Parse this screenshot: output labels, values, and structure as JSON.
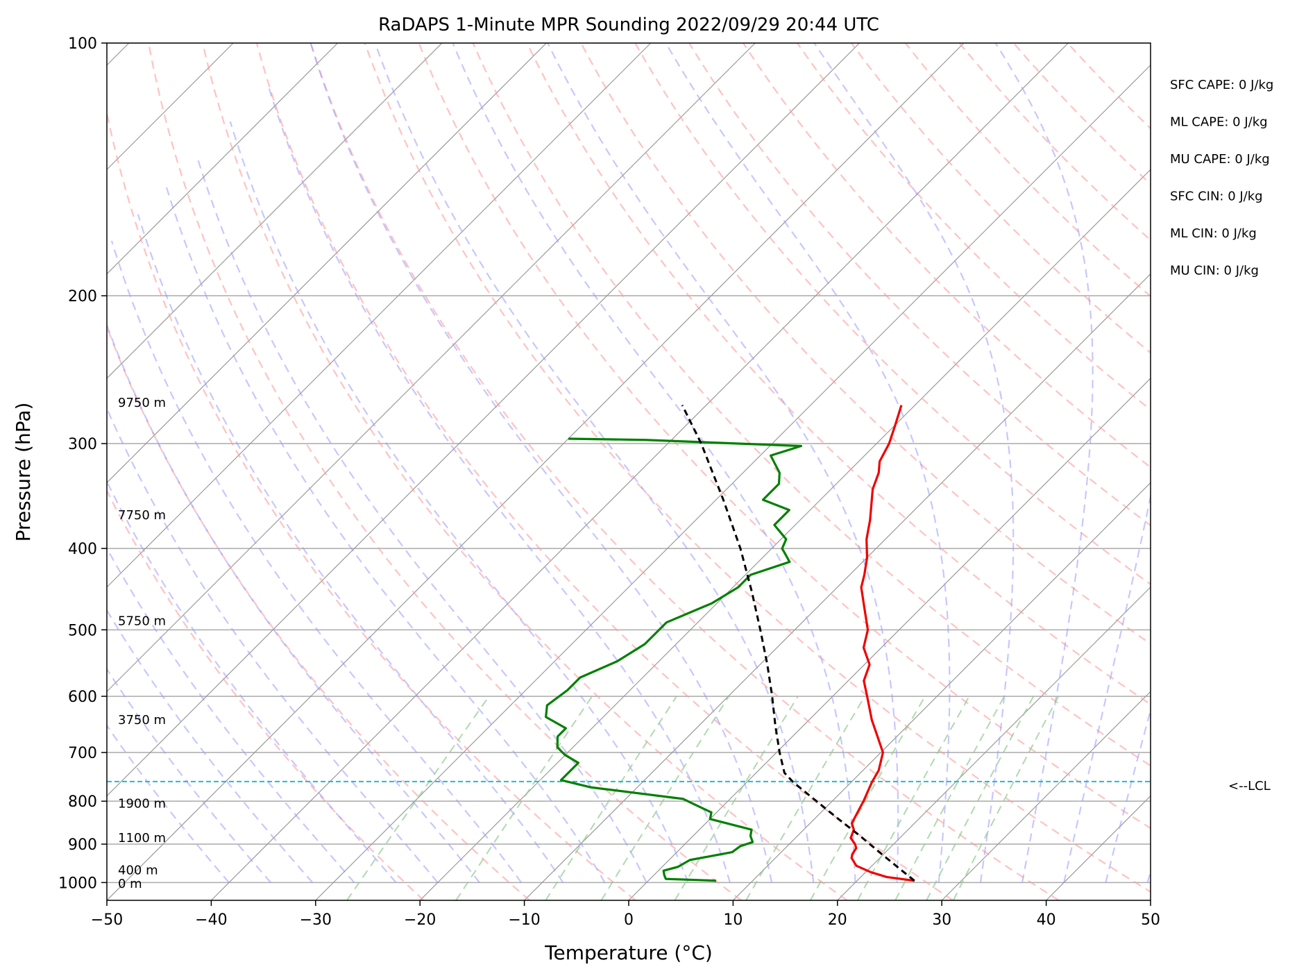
{
  "chart_data": {
    "type": "skew-t log-p sounding",
    "title": "RaDAPS 1-Minute MPR Sounding 2022/09/29 20:44 UTC",
    "xlabel": "Temperature (°C)",
    "ylabel": "Pressure (hPa)",
    "xlim": [
      -50,
      50
    ],
    "ylim_hpa": [
      1050,
      100
    ],
    "x_ticks": [
      "−50",
      "−40",
      "−30",
      "−20",
      "−10",
      "0",
      "10",
      "20",
      "30",
      "40",
      "50"
    ],
    "x_tick_values": [
      -50,
      -40,
      -30,
      -20,
      -10,
      0,
      10,
      20,
      30,
      40,
      50
    ],
    "y_ticks": [
      "100",
      "200",
      "300",
      "400",
      "500",
      "600",
      "700",
      "800",
      "900",
      "1000"
    ],
    "y_tick_values": [
      100,
      200,
      300,
      400,
      500,
      600,
      700,
      800,
      900,
      1000
    ],
    "grid": true,
    "colors": {
      "temperature": "#ee0000",
      "dewpoint": "#008000",
      "parcel": "#000000",
      "lcl": "#17becf",
      "dry_adiabats": "#ff9999",
      "moist_adiabats": "#9999ff",
      "mixing_ratio": "#8fc98f",
      "isotherms": "#999999",
      "isobars": "#aaaaaa"
    },
    "temperature": [
      {
        "p": 995,
        "t": 25.5
      },
      {
        "p": 985,
        "t": 22.5
      },
      {
        "p": 972,
        "t": 20.5
      },
      {
        "p": 955,
        "t": 18.5
      },
      {
        "p": 935,
        "t": 17.3
      },
      {
        "p": 925,
        "t": 17.0
      },
      {
        "p": 910,
        "t": 16.8
      },
      {
        "p": 900,
        "t": 16.3
      },
      {
        "p": 885,
        "t": 15.3
      },
      {
        "p": 865,
        "t": 14.8
      },
      {
        "p": 850,
        "t": 14.0
      },
      {
        "p": 825,
        "t": 13.5
      },
      {
        "p": 800,
        "t": 13.0
      },
      {
        "p": 760,
        "t": 12.0
      },
      {
        "p": 735,
        "t": 11.5
      },
      {
        "p": 700,
        "t": 10.2
      },
      {
        "p": 665,
        "t": 7.8
      },
      {
        "p": 640,
        "t": 6.0
      },
      {
        "p": 600,
        "t": 3.3
      },
      {
        "p": 575,
        "t": 1.5
      },
      {
        "p": 550,
        "t": 0.5
      },
      {
        "p": 525,
        "t": -1.7
      },
      {
        "p": 500,
        "t": -3.0
      },
      {
        "p": 470,
        "t": -5.5
      },
      {
        "p": 445,
        "t": -7.7
      },
      {
        "p": 430,
        "t": -8.6
      },
      {
        "p": 410,
        "t": -10.0
      },
      {
        "p": 390,
        "t": -11.8
      },
      {
        "p": 370,
        "t": -13.3
      },
      {
        "p": 340,
        "t": -16.0
      },
      {
        "p": 325,
        "t": -17.0
      },
      {
        "p": 315,
        "t": -18.0
      },
      {
        "p": 300,
        "t": -18.8
      },
      {
        "p": 285,
        "t": -20.0
      },
      {
        "p": 270,
        "t": -21.3
      }
    ],
    "dewpoint": [
      {
        "p": 995,
        "t": 6.5
      },
      {
        "p": 990,
        "t": 1.5
      },
      {
        "p": 980,
        "t": 1.0
      },
      {
        "p": 968,
        "t": 0.5
      },
      {
        "p": 958,
        "t": 1.5
      },
      {
        "p": 940,
        "t": 2.0
      },
      {
        "p": 920,
        "t": 5.3
      },
      {
        "p": 905,
        "t": 5.5
      },
      {
        "p": 895,
        "t": 6.3
      },
      {
        "p": 880,
        "t": 5.5
      },
      {
        "p": 865,
        "t": 5.0
      },
      {
        "p": 840,
        "t": 0.0
      },
      {
        "p": 825,
        "t": -0.5
      },
      {
        "p": 810,
        "t": -2.5
      },
      {
        "p": 795,
        "t": -4.5
      },
      {
        "p": 770,
        "t": -14.5
      },
      {
        "p": 755,
        "t": -18.0
      },
      {
        "p": 745,
        "t": -18.0
      },
      {
        "p": 720,
        "t": -18.0
      },
      {
        "p": 705,
        "t": -20.0
      },
      {
        "p": 690,
        "t": -21.5
      },
      {
        "p": 670,
        "t": -22.5
      },
      {
        "p": 655,
        "t": -22.5
      },
      {
        "p": 635,
        "t": -25.5
      },
      {
        "p": 615,
        "t": -26.5
      },
      {
        "p": 590,
        "t": -26.0
      },
      {
        "p": 570,
        "t": -26.0
      },
      {
        "p": 545,
        "t": -24.0
      },
      {
        "p": 520,
        "t": -23.0
      },
      {
        "p": 500,
        "t": -23.0
      },
      {
        "p": 490,
        "t": -23.0
      },
      {
        "p": 465,
        "t": -20.5
      },
      {
        "p": 445,
        "t": -19.5
      },
      {
        "p": 430,
        "t": -19.5
      },
      {
        "p": 415,
        "t": -17.0
      },
      {
        "p": 400,
        "t": -19.0
      },
      {
        "p": 390,
        "t": -19.5
      },
      {
        "p": 375,
        "t": -22.0
      },
      {
        "p": 360,
        "t": -22.0
      },
      {
        "p": 350,
        "t": -25.5
      },
      {
        "p": 335,
        "t": -25.5
      },
      {
        "p": 325,
        "t": -26.5
      },
      {
        "p": 310,
        "t": -29.0
      },
      {
        "p": 302,
        "t": -27.0
      },
      {
        "p": 297,
        "t": -42.5
      },
      {
        "p": 296,
        "t": -50.0
      }
    ],
    "parcel": [
      {
        "p": 995,
        "t": 25.5
      },
      {
        "p": 960,
        "t": 22.7
      },
      {
        "p": 920,
        "t": 19.4
      },
      {
        "p": 880,
        "t": 16.0
      },
      {
        "p": 840,
        "t": 12.3
      },
      {
        "p": 800,
        "t": 8.5
      },
      {
        "p": 760,
        "t": 4.5
      },
      {
        "p": 740,
        "t": 2.7
      },
      {
        "p": 700,
        "t": 0.3
      },
      {
        "p": 650,
        "t": -2.7
      },
      {
        "p": 600,
        "t": -5.8
      },
      {
        "p": 550,
        "t": -9.3
      },
      {
        "p": 500,
        "t": -13.3
      },
      {
        "p": 450,
        "t": -17.8
      },
      {
        "p": 400,
        "t": -23.0
      },
      {
        "p": 350,
        "t": -29.3
      },
      {
        "p": 300,
        "t": -36.8
      },
      {
        "p": 270,
        "t": -42.3
      }
    ],
    "lcl_pressure": 758,
    "lcl_label": "<--LCL",
    "height_labels": [
      {
        "label": "9750 m",
        "p": 268
      },
      {
        "label": "7750 m",
        "p": 365
      },
      {
        "label": "5750 m",
        "p": 488
      },
      {
        "label": "3750 m",
        "p": 640
      },
      {
        "label": "1900 m",
        "p": 805
      },
      {
        "label": "1100 m",
        "p": 885
      },
      {
        "label": "400 m",
        "p": 967
      },
      {
        "label": "0 m",
        "p": 1003
      }
    ],
    "stats": [
      "SFC CAPE: 0 J/kg",
      "ML CAPE: 0 J/kg",
      "MU CAPE: 0 J/kg",
      "SFC CIN: 0 J/kg",
      "ML CIN: 0 J/kg",
      "MU CIN: 0 J/kg"
    ]
  }
}
